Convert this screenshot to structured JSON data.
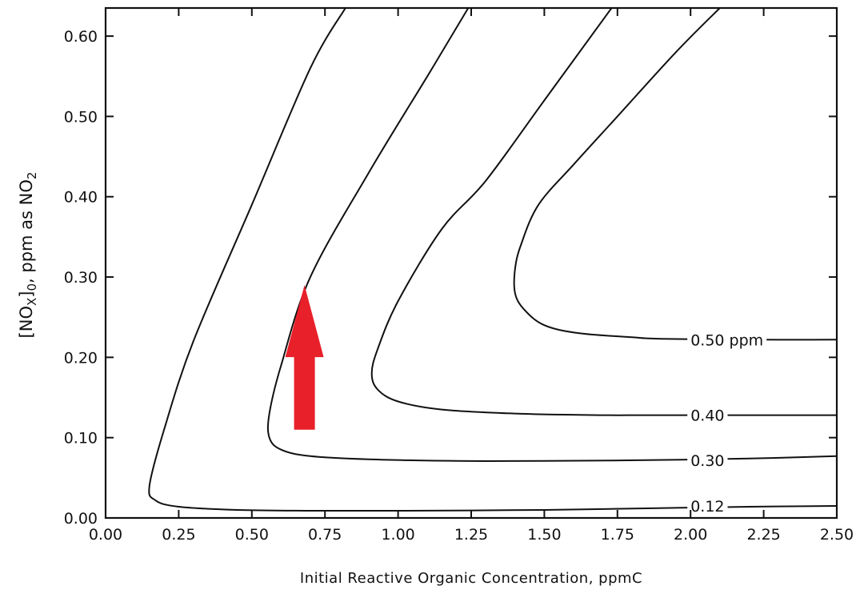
{
  "chart_data": {
    "type": "line",
    "title": "",
    "xlabel": "Initial Reactive Organic Concentration, ppmC",
    "ylabel": {
      "prefix": "[NO",
      "sub1": "X",
      "mid": "]",
      "sub2": "0",
      "suffix": ", ppm as NO",
      "sub3": "2"
    },
    "xlim": [
      0.0,
      2.5
    ],
    "ylim": [
      0.0,
      0.635
    ],
    "xticks": [
      "0.00",
      "0.25",
      "0.50",
      "0.75",
      "1.00",
      "1.25",
      "1.50",
      "1.75",
      "2.00",
      "2.25",
      "2.50"
    ],
    "yticks": [
      "0.00",
      "0.10",
      "0.20",
      "0.30",
      "0.40",
      "0.50",
      "0.60"
    ],
    "grid": false,
    "series": [
      {
        "name": "0.12",
        "label_text": "0.12",
        "label_at": [
          2.0,
          0.015
        ],
        "x": [
          0.82,
          0.7,
          0.5,
          0.3,
          0.2,
          0.15,
          0.17,
          0.25,
          0.45,
          0.7,
          1.0,
          1.5,
          1.85,
          2.2,
          2.5
        ],
        "y": [
          0.635,
          0.56,
          0.39,
          0.22,
          0.11,
          0.04,
          0.022,
          0.014,
          0.01,
          0.009,
          0.009,
          0.01,
          0.012,
          0.014,
          0.015
        ]
      },
      {
        "name": "0.30",
        "label_text": "0.30",
        "label_at": [
          2.0,
          0.072
        ],
        "x": [
          1.24,
          1.1,
          0.9,
          0.7,
          0.6,
          0.56,
          0.56,
          0.6,
          0.7,
          0.9,
          1.2,
          1.5,
          1.85,
          2.2,
          2.5
        ],
        "y": [
          0.635,
          0.55,
          0.43,
          0.3,
          0.19,
          0.13,
          0.1,
          0.085,
          0.077,
          0.073,
          0.071,
          0.071,
          0.072,
          0.074,
          0.077
        ]
      },
      {
        "name": "0.40",
        "label_text": "0.40",
        "label_at": [
          2.0,
          0.128
        ],
        "x": [
          1.73,
          1.5,
          1.3,
          1.15,
          1.0,
          0.93,
          0.91,
          0.93,
          1.0,
          1.15,
          1.4,
          1.7,
          1.85,
          2.2,
          2.5
        ],
        "y": [
          0.635,
          0.52,
          0.42,
          0.36,
          0.27,
          0.21,
          0.18,
          0.16,
          0.145,
          0.135,
          0.13,
          0.128,
          0.128,
          0.128,
          0.128
        ]
      },
      {
        "name": "0.50 ppm",
        "label_text": "0.50 ppm",
        "label_at": [
          2.0,
          0.222
        ],
        "x": [
          2.1,
          1.95,
          1.75,
          1.6,
          1.48,
          1.42,
          1.4,
          1.4,
          1.43,
          1.5,
          1.62,
          1.8,
          1.9,
          2.2,
          2.5
        ],
        "y": [
          0.635,
          0.58,
          0.5,
          0.44,
          0.39,
          0.34,
          0.31,
          0.28,
          0.26,
          0.24,
          0.23,
          0.225,
          0.223,
          0.222,
          0.222
        ]
      }
    ],
    "annotations": [
      {
        "type": "arrow",
        "color": "#e8202a",
        "direction": "up",
        "x": 0.68,
        "y_from": 0.11,
        "y_to": 0.29
      }
    ]
  }
}
